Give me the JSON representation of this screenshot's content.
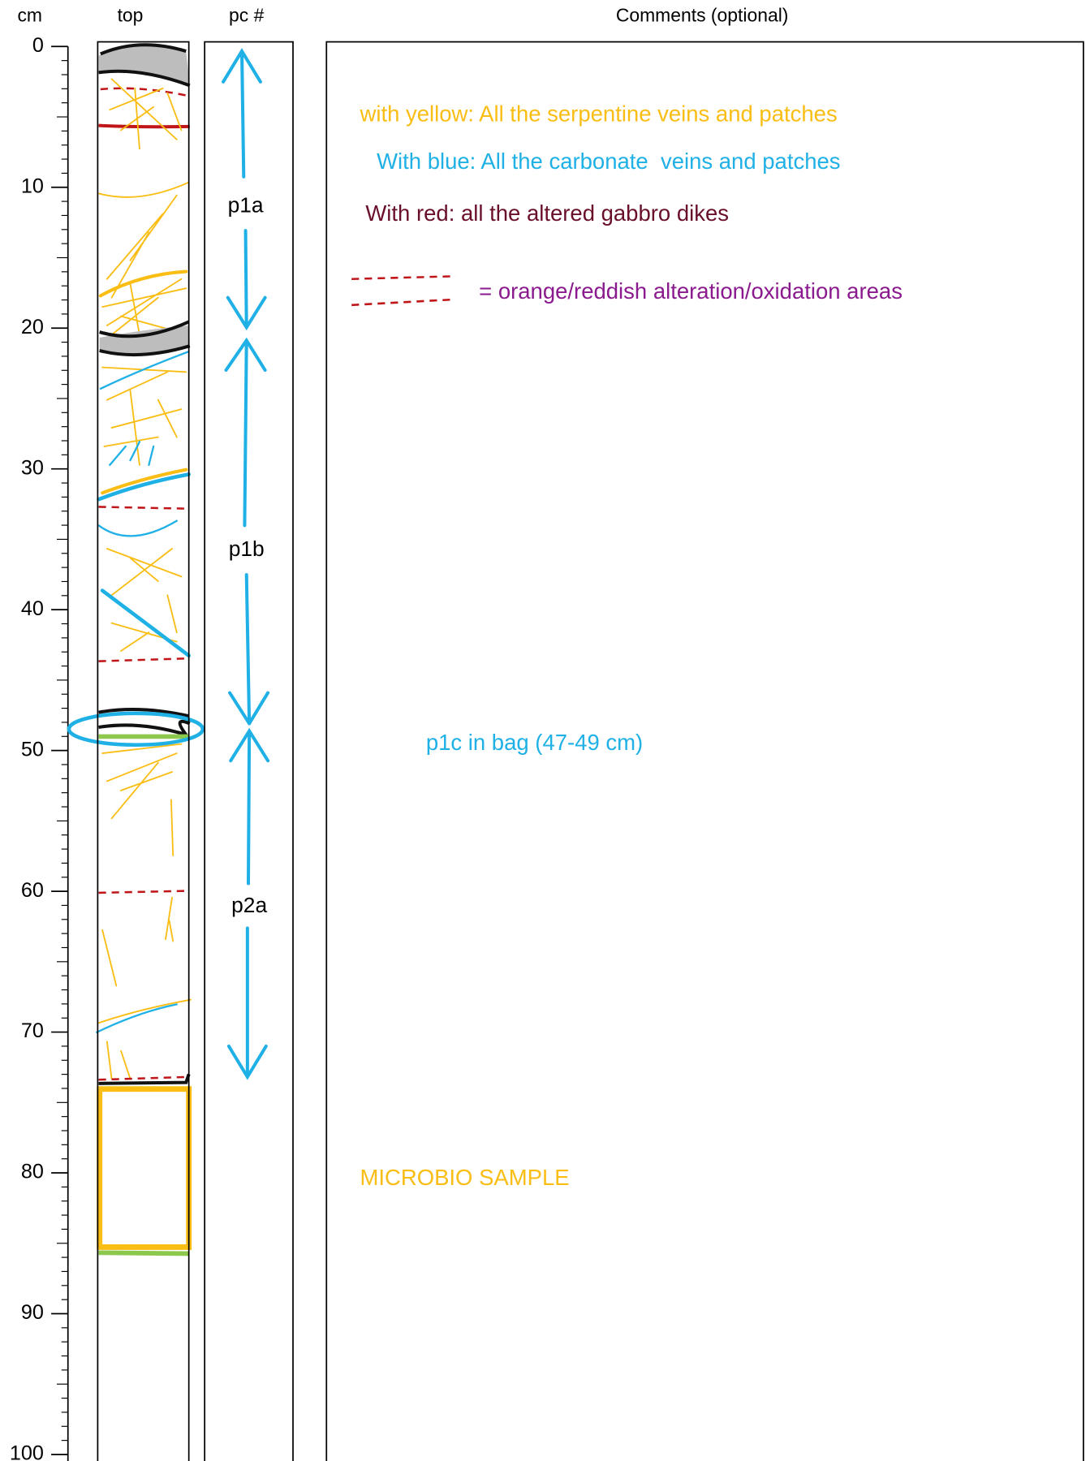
{
  "header": {
    "depth": "cm",
    "core": "top",
    "piece": "pc #",
    "comments": "Comments (optional)"
  },
  "axis": {
    "ticks": [
      0,
      10,
      20,
      30,
      40,
      50,
      60,
      70,
      80,
      90,
      100
    ]
  },
  "pieces": [
    {
      "label": "p1a"
    },
    {
      "label": "p1b"
    },
    {
      "label": "p2a"
    }
  ],
  "comments": {
    "legend": [
      "with yellow: All the serpentine veins and patches",
      "With blue: All the carbonate  veins and patches",
      "With red: all the altered gabbro dikes",
      "= orange/reddish alteration/oxidation areas"
    ],
    "bag": "p1c in bag (47-49 cm)",
    "sample": "MICROBIO SAMPLE"
  }
}
